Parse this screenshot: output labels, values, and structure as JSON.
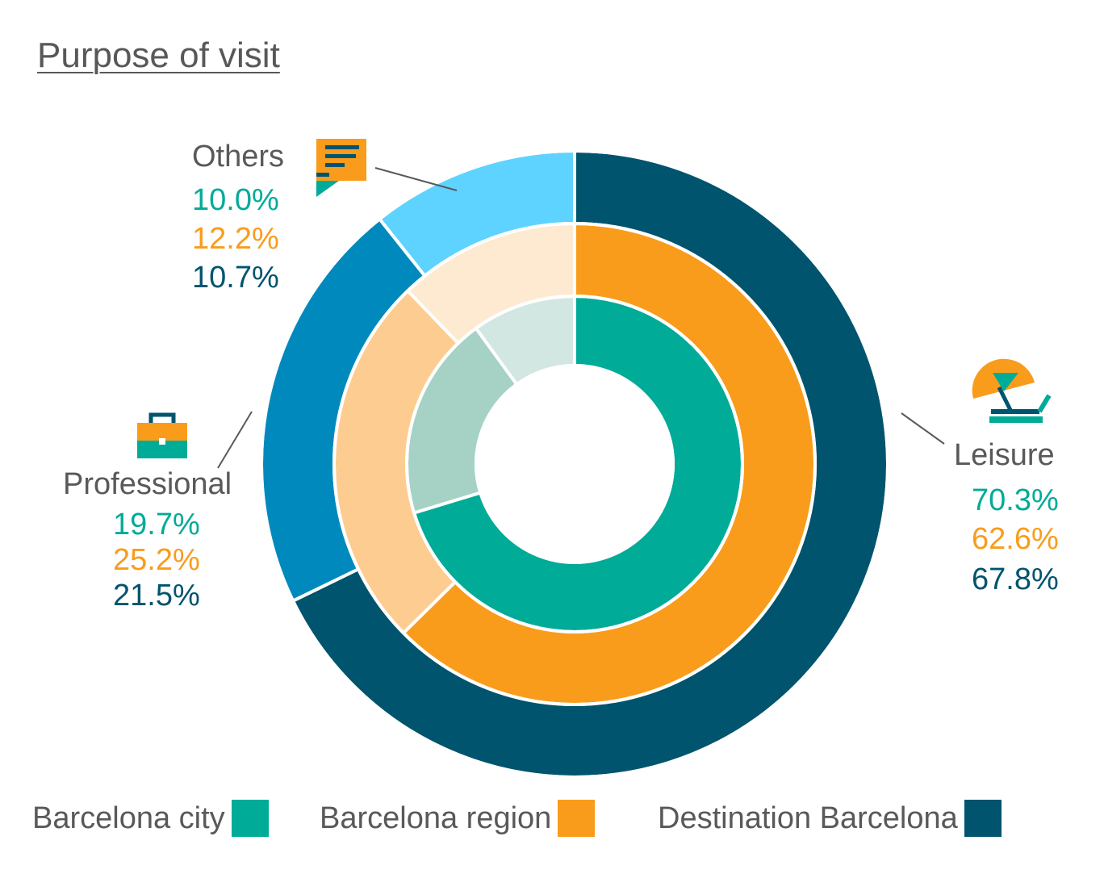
{
  "title": "Purpose of visit",
  "colors": {
    "city": "#00ab98",
    "region": "#f99c1c",
    "destination": "#00546e",
    "text": "#595959"
  },
  "labels": {
    "others": {
      "name": "Others",
      "city": "10.0%",
      "region": "12.2%",
      "destination": "10.7%"
    },
    "professional": {
      "name": "Professional",
      "city": "19.7%",
      "region": "25.2%",
      "destination": "21.5%"
    },
    "leisure": {
      "name": "Leisure",
      "city": "70.3%",
      "region": "62.6%",
      "destination": "67.8%"
    }
  },
  "icons": {
    "others": "chat-bubble-icon",
    "professional": "briefcase-icon",
    "leisure": "beach-umbrella-icon"
  },
  "legend": [
    {
      "label": "Barcelona city",
      "color": "#00ab98"
    },
    {
      "label": "Barcelona region",
      "color": "#f99c1c"
    },
    {
      "label": "Destination Barcelona",
      "color": "#00546e"
    }
  ],
  "chart_data": {
    "type": "pie",
    "subtype": "nested-donut",
    "title": "Purpose of visit",
    "categories": [
      "Leisure",
      "Professional",
      "Others"
    ],
    "series": [
      {
        "name": "Barcelona city",
        "ring": "inner",
        "values": [
          70.3,
          19.7,
          10.0
        ],
        "colors": [
          "#00ab98",
          "#a5d2c4",
          "#d2e7e1"
        ]
      },
      {
        "name": "Barcelona region",
        "ring": "middle",
        "values": [
          62.6,
          25.2,
          12.2
        ],
        "colors": [
          "#f99c1c",
          "#fdcc90",
          "#fee9d1"
        ]
      },
      {
        "name": "Destination Barcelona",
        "ring": "outer",
        "values": [
          67.8,
          21.5,
          10.7
        ],
        "colors": [
          "#00546e",
          "#0089bc",
          "#5ed3ff"
        ]
      }
    ],
    "legend_position": "bottom"
  }
}
